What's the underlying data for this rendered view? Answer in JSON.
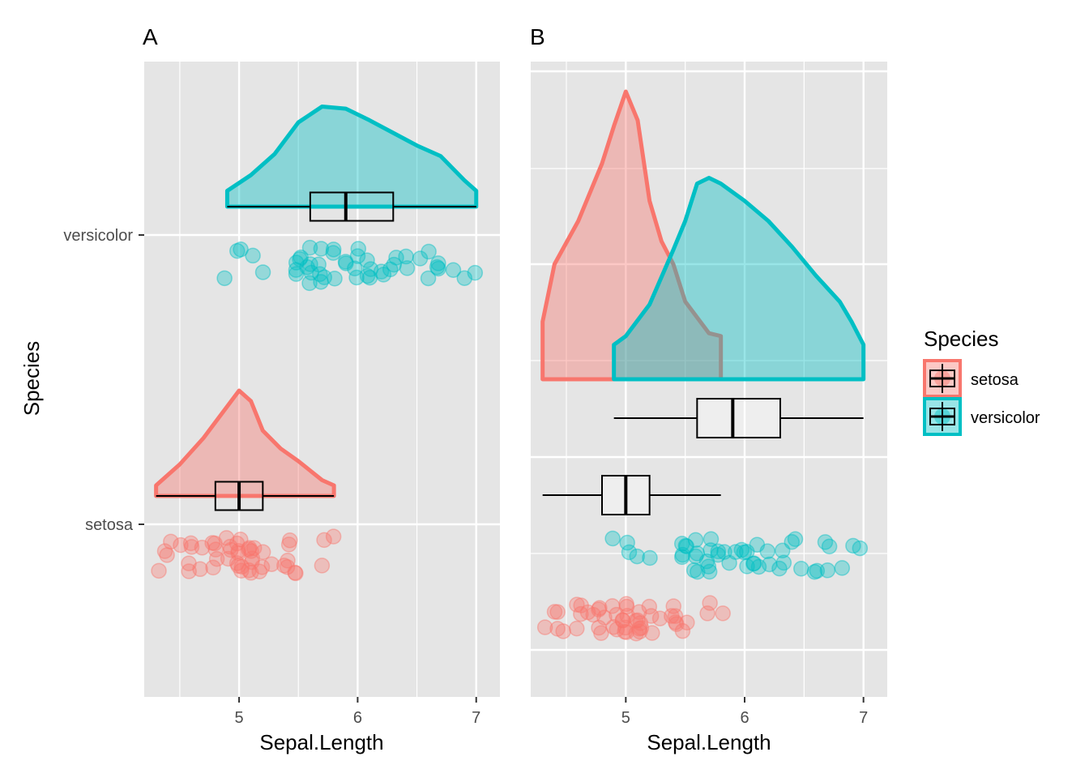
{
  "colors": {
    "panel_bg": "#e5e5e5",
    "grid": "#ffffff",
    "setosa": "#f8766d",
    "versicolor": "#00bfc4",
    "text": "#000000",
    "tick_text": "#4d4d4d"
  },
  "chart_data": [
    {
      "type": "raincloud",
      "panel_tag": "A",
      "orientation": "horizontal",
      "xlabel": "Sepal.Length",
      "ylabel": "Species",
      "xlim": [
        4.2,
        7.2
      ],
      "xticks": [
        5,
        6,
        7
      ],
      "categories": [
        "setosa",
        "versicolor"
      ],
      "grid": true,
      "series": [
        {
          "name": "setosa",
          "density": [
            [
              4.3,
              0.1
            ],
            [
              4.5,
              0.3
            ],
            [
              4.7,
              0.55
            ],
            [
              4.9,
              0.85
            ],
            [
              5.0,
              1.0
            ],
            [
              5.1,
              0.9
            ],
            [
              5.2,
              0.62
            ],
            [
              5.35,
              0.45
            ],
            [
              5.5,
              0.33
            ],
            [
              5.7,
              0.15
            ],
            [
              5.8,
              0.1
            ]
          ],
          "box": {
            "min": 4.3,
            "q1": 4.8,
            "median": 5.0,
            "q3": 5.2,
            "max": 5.8
          },
          "points": [
            4.3,
            4.4,
            4.4,
            4.4,
            4.5,
            4.6,
            4.6,
            4.6,
            4.6,
            4.7,
            4.7,
            4.8,
            4.8,
            4.8,
            4.8,
            4.8,
            4.9,
            4.9,
            4.9,
            4.9,
            5.0,
            5.0,
            5.0,
            5.0,
            5.0,
            5.0,
            5.0,
            5.0,
            5.1,
            5.1,
            5.1,
            5.1,
            5.1,
            5.1,
            5.1,
            5.1,
            5.2,
            5.2,
            5.2,
            5.3,
            5.4,
            5.4,
            5.4,
            5.4,
            5.4,
            5.5,
            5.5,
            5.7,
            5.7,
            5.8
          ]
        },
        {
          "name": "versicolor",
          "density": [
            [
              4.9,
              0.15
            ],
            [
              5.1,
              0.3
            ],
            [
              5.3,
              0.5
            ],
            [
              5.5,
              0.8
            ],
            [
              5.7,
              0.95
            ],
            [
              5.9,
              0.93
            ],
            [
              6.1,
              0.82
            ],
            [
              6.3,
              0.7
            ],
            [
              6.5,
              0.58
            ],
            [
              6.7,
              0.48
            ],
            [
              6.9,
              0.25
            ],
            [
              7.0,
              0.15
            ]
          ],
          "box": {
            "min": 4.9,
            "q1": 5.6,
            "median": 5.9,
            "q3": 6.3,
            "max": 7.0
          },
          "points": [
            4.9,
            5.0,
            5.0,
            5.1,
            5.2,
            5.5,
            5.5,
            5.5,
            5.5,
            5.5,
            5.6,
            5.6,
            5.6,
            5.6,
            5.6,
            5.7,
            5.7,
            5.7,
            5.7,
            5.7,
            5.8,
            5.8,
            5.8,
            5.9,
            5.9,
            6.0,
            6.0,
            6.0,
            6.0,
            6.1,
            6.1,
            6.1,
            6.1,
            6.2,
            6.2,
            6.3,
            6.3,
            6.3,
            6.4,
            6.4,
            6.5,
            6.6,
            6.6,
            6.7,
            6.7,
            6.7,
            6.8,
            6.9,
            7.0
          ]
        }
      ]
    },
    {
      "type": "raincloud",
      "panel_tag": "B",
      "orientation": "horizontal",
      "xlabel": "Sepal.Length",
      "ylabel": "",
      "xlim": [
        4.2,
        7.2
      ],
      "xticks": [
        5,
        6,
        7
      ],
      "grid": true,
      "legend": {
        "title": "Species",
        "placement": "right",
        "entries": [
          "setosa",
          "versicolor"
        ]
      },
      "series": [
        {
          "name": "setosa",
          "density": [
            [
              4.3,
              0.2
            ],
            [
              4.4,
              0.4
            ],
            [
              4.6,
              0.55
            ],
            [
              4.8,
              0.75
            ],
            [
              4.9,
              0.88
            ],
            [
              5.0,
              1.0
            ],
            [
              5.1,
              0.9
            ],
            [
              5.2,
              0.62
            ],
            [
              5.3,
              0.48
            ],
            [
              5.4,
              0.4
            ],
            [
              5.5,
              0.27
            ],
            [
              5.7,
              0.16
            ],
            [
              5.8,
              0.15
            ]
          ],
          "box": {
            "min": 4.3,
            "q1": 4.8,
            "median": 5.0,
            "q3": 5.2,
            "max": 5.8
          },
          "points": [
            4.3,
            4.4,
            4.4,
            4.4,
            4.5,
            4.6,
            4.6,
            4.6,
            4.6,
            4.7,
            4.7,
            4.8,
            4.8,
            4.8,
            4.8,
            4.8,
            4.9,
            4.9,
            4.9,
            4.9,
            5.0,
            5.0,
            5.0,
            5.0,
            5.0,
            5.0,
            5.0,
            5.0,
            5.1,
            5.1,
            5.1,
            5.1,
            5.1,
            5.1,
            5.1,
            5.1,
            5.2,
            5.2,
            5.2,
            5.3,
            5.4,
            5.4,
            5.4,
            5.4,
            5.4,
            5.5,
            5.5,
            5.7,
            5.7,
            5.8
          ]
        },
        {
          "name": "versicolor",
          "density": [
            [
              4.9,
              0.12
            ],
            [
              5.0,
              0.15
            ],
            [
              5.2,
              0.26
            ],
            [
              5.4,
              0.45
            ],
            [
              5.5,
              0.55
            ],
            [
              5.6,
              0.68
            ],
            [
              5.7,
              0.7
            ],
            [
              5.8,
              0.68
            ],
            [
              6.0,
              0.62
            ],
            [
              6.2,
              0.55
            ],
            [
              6.4,
              0.46
            ],
            [
              6.6,
              0.36
            ],
            [
              6.8,
              0.27
            ],
            [
              6.9,
              0.2
            ],
            [
              7.0,
              0.12
            ]
          ],
          "box": {
            "min": 4.9,
            "q1": 5.6,
            "median": 5.9,
            "q3": 6.3,
            "max": 7.0
          },
          "points": [
            4.9,
            5.0,
            5.0,
            5.1,
            5.2,
            5.5,
            5.5,
            5.5,
            5.5,
            5.5,
            5.6,
            5.6,
            5.6,
            5.6,
            5.6,
            5.7,
            5.7,
            5.7,
            5.7,
            5.7,
            5.8,
            5.8,
            5.8,
            5.9,
            5.9,
            6.0,
            6.0,
            6.0,
            6.0,
            6.1,
            6.1,
            6.1,
            6.1,
            6.2,
            6.2,
            6.3,
            6.3,
            6.3,
            6.4,
            6.4,
            6.5,
            6.6,
            6.6,
            6.7,
            6.7,
            6.7,
            6.8,
            6.9,
            7.0
          ]
        }
      ]
    }
  ]
}
